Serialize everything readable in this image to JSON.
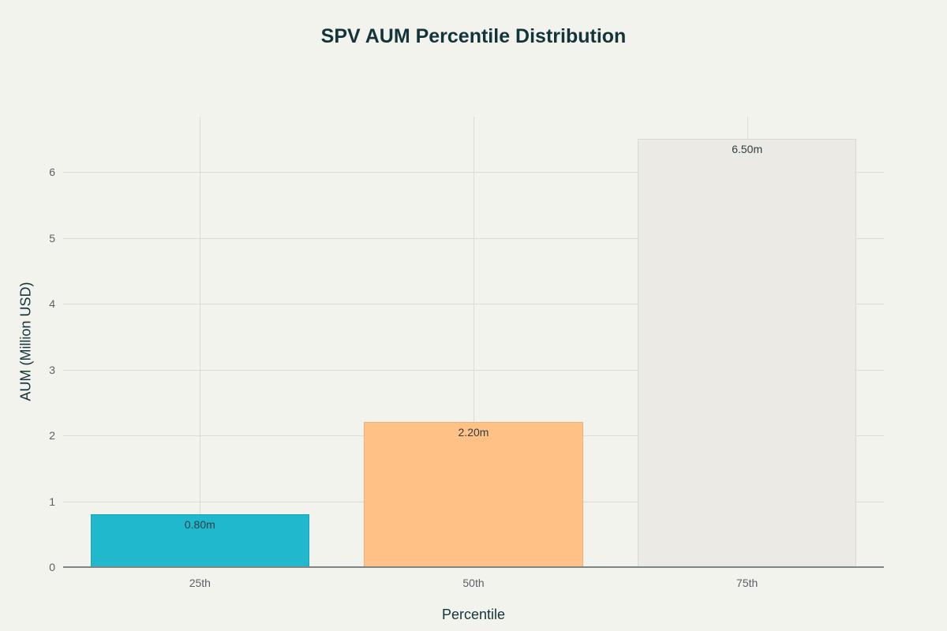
{
  "chart_data": {
    "type": "bar",
    "title": "SPV AUM Percentile Distribution",
    "xlabel": "Percentile",
    "ylabel": "AUM (Million USD)",
    "categories": [
      "25th",
      "50th",
      "75th"
    ],
    "values": [
      0.8,
      2.2,
      6.5
    ],
    "data_labels": [
      "0.80m",
      "2.20m",
      "6.50m"
    ],
    "colors": [
      "#1fb8cd",
      "#ffc185",
      "#eceae4"
    ],
    "ylim": [
      0,
      6.83
    ],
    "yticks": [
      0,
      1,
      2,
      3,
      4,
      5,
      6
    ],
    "grid": true,
    "legend": false
  }
}
